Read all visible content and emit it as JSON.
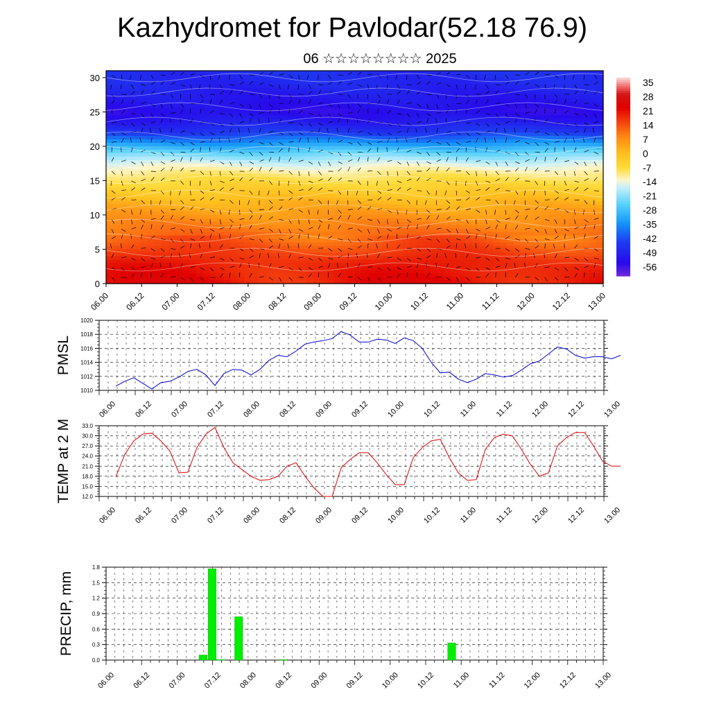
{
  "page": {
    "title": "Kazhydromet for Pavlodar(52.18 76.9)",
    "subtitle": "06 ☆☆☆☆☆☆☆☆ 2025"
  },
  "chart_data": [
    {
      "type": "heatmap",
      "title": "",
      "x_tick_labels": [
        "06.00",
        "06.12",
        "07.00",
        "07.12",
        "08.00",
        "08.12",
        "09.00",
        "09.12",
        "10.00",
        "10.12",
        "11.00",
        "11.12",
        "12.00",
        "12.12",
        "13.00"
      ],
      "y_tick_labels": [
        "0",
        "5",
        "10",
        "15",
        "20",
        "25",
        "30"
      ],
      "ylim": [
        0,
        31
      ],
      "colorbar_labels": [
        "35",
        "28",
        "21",
        "14",
        "7",
        "0",
        "-7",
        "-14",
        "-21",
        "-28",
        "-35",
        "-42",
        "-49",
        "-56"
      ],
      "colorbar_range": [
        -63,
        42
      ],
      "overlay": "wind arrows and streamlines",
      "colors": {
        "warm": "#e00000",
        "mid": "#ffd040",
        "cold": "#3010e0"
      }
    },
    {
      "type": "line",
      "ylabel": "PMSL",
      "x_tick_labels": [
        "06.00",
        "06.12",
        "07.00",
        "07.12",
        "08.00",
        "08.12",
        "09.00",
        "09.12",
        "10.00",
        "10.12",
        "11.00",
        "11.12",
        "12.00",
        "12.12",
        "13.00"
      ],
      "y_tick_labels": [
        "1010",
        "1012",
        "1014",
        "1016",
        "1018",
        "1020"
      ],
      "ylim": [
        1010,
        1020
      ],
      "x_step_hours": 3,
      "series": [
        {
          "color": "#0000cc",
          "values": [
            1010.6,
            1011.3,
            1011.8,
            1011.0,
            1010.2,
            1011.1,
            1011.3,
            1011.9,
            1012.7,
            1013.0,
            1012.2,
            1010.7,
            1012.4,
            1013.0,
            1012.9,
            1012.2,
            1013.0,
            1014.3,
            1015.0,
            1014.8,
            1015.6,
            1016.6,
            1016.9,
            1017.1,
            1017.4,
            1018.4,
            1017.9,
            1016.9,
            1016.9,
            1017.3,
            1017.2,
            1016.7,
            1017.5,
            1017.1,
            1016.0,
            1014.0,
            1012.5,
            1012.6,
            1011.6,
            1011.1,
            1011.6,
            1012.4,
            1012.2,
            1011.9,
            1012.1,
            1012.9,
            1013.8,
            1014.2,
            1015.2,
            1016.2,
            1015.9,
            1015.0,
            1014.6,
            1014.8,
            1014.8,
            1014.5,
            1015.0
          ]
        }
      ]
    },
    {
      "type": "line",
      "ylabel": "TEMP at 2 M",
      "x_tick_labels": [
        "06.00",
        "06.12",
        "07.00",
        "07.12",
        "08.00",
        "08.12",
        "09.00",
        "09.12",
        "10.00",
        "10.12",
        "11.00",
        "11.12",
        "12.00",
        "12.12",
        "13.00"
      ],
      "y_tick_labels": [
        "12.0",
        "15.0",
        "18.0",
        "21.0",
        "24.0",
        "27.0",
        "30.0",
        "33.0"
      ],
      "ylim": [
        12,
        33
      ],
      "x_step_hours": 3,
      "series": [
        {
          "color": "#dd0000",
          "values": [
            17.8,
            24.5,
            28.5,
            30.5,
            30.8,
            28.5,
            25.5,
            19.0,
            19.2,
            26.5,
            30.5,
            32.5,
            26.5,
            22.0,
            20.0,
            18.0,
            16.8,
            17.0,
            18.0,
            21.0,
            22.0,
            18.0,
            14.5,
            12.0,
            12.0,
            20.5,
            23.0,
            25.0,
            25.0,
            22.0,
            18.5,
            15.5,
            15.5,
            23.5,
            26.5,
            28.5,
            29.0,
            23.5,
            19.0,
            16.8,
            17.0,
            26.0,
            29.5,
            30.5,
            30.0,
            26.0,
            21.5,
            18.0,
            19.0,
            27.0,
            29.5,
            31.0,
            31.0,
            27.0,
            22.5,
            21.0,
            21.0
          ]
        }
      ]
    },
    {
      "type": "bar",
      "ylabel": "PRECIP, mm",
      "x_tick_labels": [
        "06.00",
        "06.12",
        "07.00",
        "07.12",
        "08.00",
        "08.12",
        "09.00",
        "09.12",
        "10.00",
        "10.12",
        "11.00",
        "11.12",
        "12.00",
        "12.12",
        "13.00"
      ],
      "y_tick_labels": [
        "0.0",
        "0.3",
        "0.6",
        "0.9",
        "1.2",
        "1.5",
        "1.8"
      ],
      "ylim": [
        0,
        1.8
      ],
      "x_step_hours": 3,
      "color": "#00ee00",
      "values": [
        0,
        0,
        0,
        0,
        0,
        0,
        0,
        0,
        0,
        0,
        0.1,
        1.77,
        0.01,
        0,
        0.84,
        0,
        0,
        0,
        0,
        0.01,
        0,
        0,
        0,
        0,
        0,
        0,
        0,
        0,
        0,
        0,
        0,
        0,
        0,
        0,
        0,
        0,
        0,
        0,
        0.33,
        0,
        0,
        0,
        0,
        0,
        0,
        0,
        0,
        0,
        0,
        0,
        0,
        0,
        0,
        0,
        0,
        0
      ]
    }
  ]
}
